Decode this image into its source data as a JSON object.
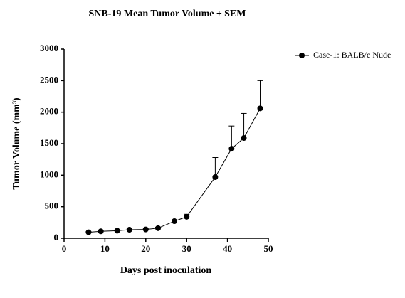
{
  "chart_data": {
    "type": "line",
    "title": "SNB-19 Mean Tumor Volume ± SEM",
    "x_label": "Days post inoculation",
    "y_label": "Tumor Volume (mm³)",
    "xlim": [
      0,
      50
    ],
    "xticks": [
      0,
      10,
      20,
      30,
      40,
      50
    ],
    "ylim": [
      0,
      3000
    ],
    "yticks": [
      0,
      500,
      1000,
      1500,
      2000,
      2500,
      3000
    ],
    "legend": "top-right",
    "series": [
      {
        "name": "Case-1: BALB/c Nude",
        "color": "#000000",
        "x": [
          6,
          9,
          13,
          16,
          20,
          23,
          27,
          30,
          37,
          41,
          44,
          48
        ],
        "values": [
          95,
          110,
          120,
          135,
          140,
          160,
          270,
          340,
          970,
          1420,
          1590,
          2060
        ],
        "errors": [
          10,
          10,
          10,
          10,
          10,
          15,
          20,
          40,
          310,
          360,
          390,
          440
        ]
      }
    ]
  }
}
